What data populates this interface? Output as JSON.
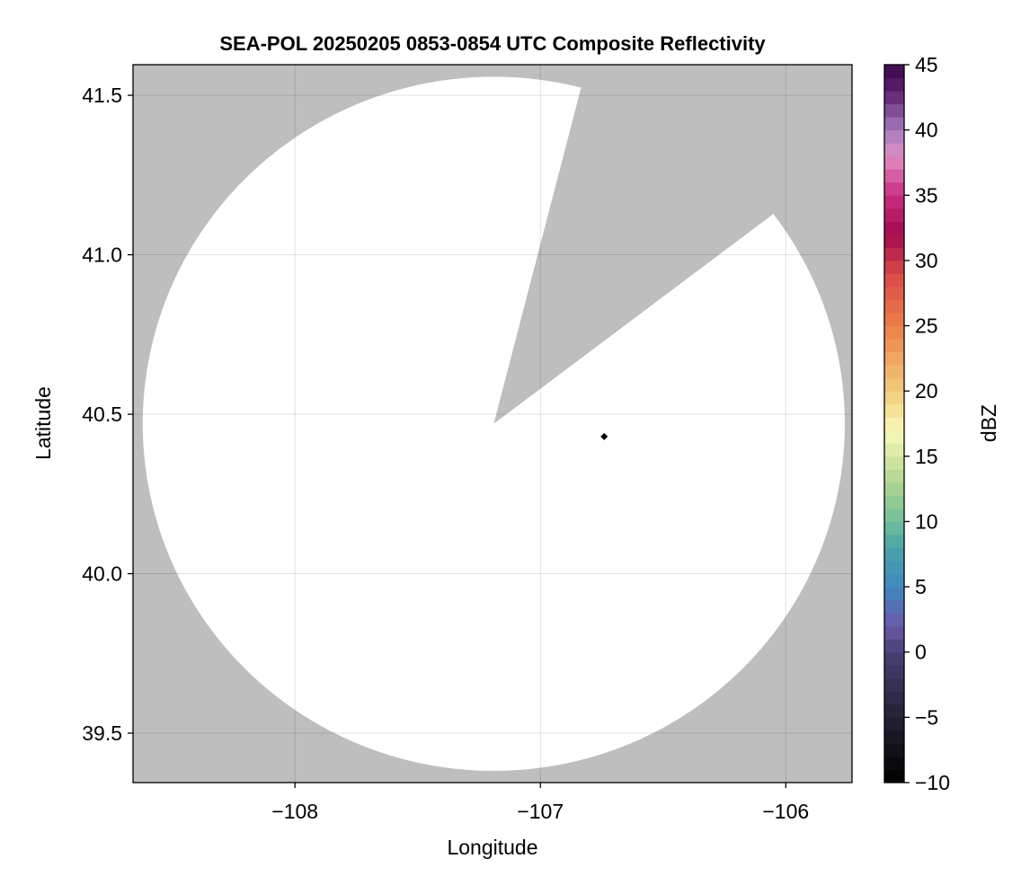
{
  "chart_data": {
    "type": "heatmap",
    "title": "SEA-POL 20250205 0853-0854 UTC Composite Reflectivity",
    "xlabel": "Longitude",
    "ylabel": "Latitude",
    "xlim": [
      -108.66,
      -105.73
    ],
    "ylim": [
      39.345,
      41.596
    ],
    "xticks": [
      -108,
      -107,
      -106
    ],
    "xtick_labels": [
      "−108",
      "−107",
      "−106"
    ],
    "yticks": [
      39.5,
      40.0,
      40.5,
      41.0,
      41.5
    ],
    "ytick_labels": [
      "39.5",
      "40.0",
      "40.5",
      "41.0",
      "41.5"
    ],
    "grid": true,
    "radar": {
      "center_lon": -107.19,
      "center_lat": 40.47,
      "range_km": 121,
      "blocked_sector_azimuth_deg": [
        14.4,
        52.8
      ],
      "reflectivity_echoes": "none"
    },
    "marker": {
      "lon": -106.74,
      "lat": 40.43,
      "shape": "diamond",
      "color": "#000000"
    },
    "no_data_color": "#bebebe",
    "coverage_color": "#ffffff",
    "colorbar": {
      "label": "dBZ",
      "range": [
        -10,
        45
      ],
      "step": 1,
      "ticks": [
        -10,
        -5,
        0,
        5,
        10,
        15,
        20,
        25,
        30,
        35,
        40,
        45
      ],
      "tick_labels": [
        "−10",
        "−5",
        "0",
        "5",
        "10",
        "15",
        "20",
        "25",
        "30",
        "35",
        "40",
        "45"
      ],
      "color_stops": [
        [
          -10,
          "#000000"
        ],
        [
          -5,
          "#252033"
        ],
        [
          0,
          "#4a3f75"
        ],
        [
          2,
          "#6a5aa8"
        ],
        [
          5,
          "#3f88bf"
        ],
        [
          8,
          "#4aa3a8"
        ],
        [
          10,
          "#6fbf9a"
        ],
        [
          13,
          "#b0d490"
        ],
        [
          17,
          "#faf8b8"
        ],
        [
          20,
          "#f0cc7a"
        ],
        [
          25,
          "#ed7f48"
        ],
        [
          29,
          "#d84a48"
        ],
        [
          32,
          "#a30a50"
        ],
        [
          35,
          "#cc2e80"
        ],
        [
          38,
          "#e08ec4"
        ],
        [
          40,
          "#a47cbc"
        ],
        [
          43,
          "#5e1e70"
        ],
        [
          45,
          "#3a0a4a"
        ]
      ]
    }
  }
}
